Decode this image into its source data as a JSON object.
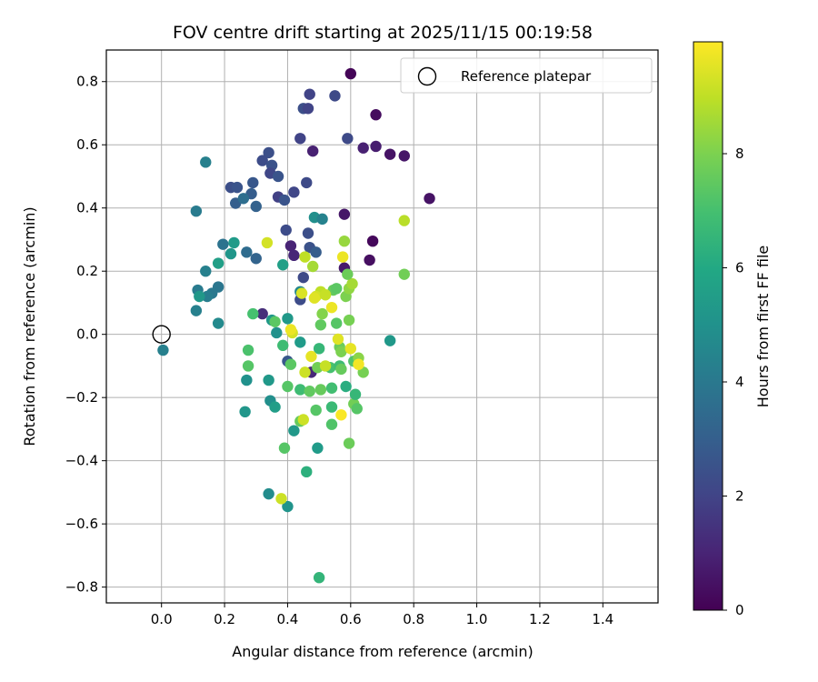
{
  "chart_data": {
    "type": "scatter",
    "title": "FOV centre drift starting at 2025/11/15 00:19:58",
    "xlabel": "Angular distance from reference (arcmin)",
    "ylabel": "Rotation from reference (arcmin)",
    "xlim": [
      -0.175,
      1.575
    ],
    "ylim": [
      -0.85,
      0.9
    ],
    "xticks": [
      0.0,
      0.2,
      0.4,
      0.6,
      0.8,
      1.0,
      1.2,
      1.4
    ],
    "xtick_labels": [
      "0.0",
      "0.2",
      "0.4",
      "0.6",
      "0.8",
      "1.0",
      "1.2",
      "1.4"
    ],
    "yticks": [
      -0.8,
      -0.6,
      -0.4,
      -0.2,
      0.0,
      0.2,
      0.4,
      0.6,
      0.8
    ],
    "ytick_labels": [
      "−0.8",
      "−0.6",
      "−0.4",
      "−0.2",
      "0.0",
      "0.2",
      "0.4",
      "0.6",
      "0.8"
    ],
    "grid": true,
    "legend": {
      "position": "upper-right",
      "entries": [
        "Reference platepar"
      ]
    },
    "reference_point": {
      "x": 0.0,
      "y": 0.0,
      "label": "Reference platepar"
    },
    "colorbar": {
      "label": "Hours from first FF file",
      "colormap": "viridis",
      "range": [
        0,
        9.96
      ],
      "ticks": [
        0,
        2,
        4,
        6,
        8
      ],
      "tick_labels": [
        "0",
        "2",
        "4",
        "6",
        "8"
      ]
    },
    "points": [
      {
        "x": 0.6,
        "y": 0.825,
        "h": 0.1
      },
      {
        "x": 0.68,
        "y": 0.695,
        "h": 0.3
      },
      {
        "x": 0.85,
        "y": 0.43,
        "h": 0.5
      },
      {
        "x": 0.77,
        "y": 0.565,
        "h": 0.6
      },
      {
        "x": 0.725,
        "y": 0.57,
        "h": 0.5
      },
      {
        "x": 0.68,
        "y": 0.595,
        "h": 0.8
      },
      {
        "x": 0.64,
        "y": 0.59,
        "h": 0.9
      },
      {
        "x": 0.67,
        "y": 0.295,
        "h": 0.2
      },
      {
        "x": 0.66,
        "y": 0.235,
        "h": 0.4
      },
      {
        "x": 0.58,
        "y": 0.38,
        "h": 0.6
      },
      {
        "x": 0.58,
        "y": 0.21,
        "h": 0.7
      },
      {
        "x": 0.48,
        "y": 0.58,
        "h": 0.9
      },
      {
        "x": 0.41,
        "y": 0.28,
        "h": 1.0
      },
      {
        "x": 0.42,
        "y": 0.25,
        "h": 1.1
      },
      {
        "x": 0.32,
        "y": 0.065,
        "h": 1.3
      },
      {
        "x": 0.475,
        "y": -0.12,
        "h": 1.1
      },
      {
        "x": 0.55,
        "y": 0.755,
        "h": 2.2
      },
      {
        "x": 0.47,
        "y": 0.76,
        "h": 2.0
      },
      {
        "x": 0.45,
        "y": 0.715,
        "h": 2.4
      },
      {
        "x": 0.465,
        "y": 0.715,
        "h": 2.0
      },
      {
        "x": 0.59,
        "y": 0.62,
        "h": 2.2
      },
      {
        "x": 0.44,
        "y": 0.62,
        "h": 2.0
      },
      {
        "x": 0.34,
        "y": 0.575,
        "h": 2.4
      },
      {
        "x": 0.32,
        "y": 0.55,
        "h": 2.3
      },
      {
        "x": 0.35,
        "y": 0.535,
        "h": 2.5
      },
      {
        "x": 0.345,
        "y": 0.51,
        "h": 2.1
      },
      {
        "x": 0.37,
        "y": 0.5,
        "h": 2.6
      },
      {
        "x": 0.46,
        "y": 0.48,
        "h": 2.2
      },
      {
        "x": 0.42,
        "y": 0.45,
        "h": 2.1
      },
      {
        "x": 0.29,
        "y": 0.48,
        "h": 2.7
      },
      {
        "x": 0.37,
        "y": 0.435,
        "h": 1.9
      },
      {
        "x": 0.39,
        "y": 0.425,
        "h": 2.6
      },
      {
        "x": 0.22,
        "y": 0.465,
        "h": 2.4
      },
      {
        "x": 0.24,
        "y": 0.465,
        "h": 2.6
      },
      {
        "x": 0.285,
        "y": 0.445,
        "h": 2.9
      },
      {
        "x": 0.235,
        "y": 0.415,
        "h": 3.0
      },
      {
        "x": 0.3,
        "y": 0.405,
        "h": 3.1
      },
      {
        "x": 0.395,
        "y": 0.33,
        "h": 2.3
      },
      {
        "x": 0.465,
        "y": 0.32,
        "h": 2.4
      },
      {
        "x": 0.47,
        "y": 0.275,
        "h": 2.5
      },
      {
        "x": 0.49,
        "y": 0.26,
        "h": 2.9
      },
      {
        "x": 0.45,
        "y": 0.18,
        "h": 2.2
      },
      {
        "x": 0.44,
        "y": 0.11,
        "h": 2.3
      },
      {
        "x": 0.4,
        "y": -0.085,
        "h": 2.7
      },
      {
        "x": 0.14,
        "y": 0.545,
        "h": 4.3
      },
      {
        "x": 0.11,
        "y": 0.39,
        "h": 4.1
      },
      {
        "x": 0.26,
        "y": 0.43,
        "h": 3.6
      },
      {
        "x": 0.27,
        "y": 0.26,
        "h": 3.5
      },
      {
        "x": 0.195,
        "y": 0.285,
        "h": 3.8
      },
      {
        "x": 0.3,
        "y": 0.24,
        "h": 3.2
      },
      {
        "x": 0.14,
        "y": 0.2,
        "h": 4.3
      },
      {
        "x": 0.18,
        "y": 0.15,
        "h": 3.9
      },
      {
        "x": 0.16,
        "y": 0.13,
        "h": 4.0
      },
      {
        "x": 0.115,
        "y": 0.14,
        "h": 4.1
      },
      {
        "x": 0.145,
        "y": 0.12,
        "h": 4.2
      },
      {
        "x": 0.11,
        "y": 0.075,
        "h": 4.3
      },
      {
        "x": 0.005,
        "y": -0.05,
        "h": 4.3
      },
      {
        "x": 0.18,
        "y": 0.035,
        "h": 4.7
      },
      {
        "x": 0.44,
        "y": 0.135,
        "h": 4.6
      },
      {
        "x": 0.485,
        "y": 0.37,
        "h": 4.9
      },
      {
        "x": 0.51,
        "y": 0.365,
        "h": 4.4
      },
      {
        "x": 0.23,
        "y": 0.29,
        "h": 5.4
      },
      {
        "x": 0.22,
        "y": 0.255,
        "h": 5.2
      },
      {
        "x": 0.18,
        "y": 0.225,
        "h": 5.6
      },
      {
        "x": 0.12,
        "y": 0.12,
        "h": 5.3
      },
      {
        "x": 0.725,
        "y": -0.02,
        "h": 5.3
      },
      {
        "x": 0.27,
        "y": -0.145,
        "h": 5.0
      },
      {
        "x": 0.34,
        "y": -0.505,
        "h": 4.8
      },
      {
        "x": 0.4,
        "y": -0.545,
        "h": 5.1
      },
      {
        "x": 0.265,
        "y": -0.245,
        "h": 5.2
      },
      {
        "x": 0.345,
        "y": -0.21,
        "h": 4.9
      },
      {
        "x": 0.36,
        "y": -0.23,
        "h": 5.5
      },
      {
        "x": 0.34,
        "y": -0.145,
        "h": 5.3
      },
      {
        "x": 0.35,
        "y": 0.045,
        "h": 5.3
      },
      {
        "x": 0.365,
        "y": 0.005,
        "h": 5.0
      },
      {
        "x": 0.4,
        "y": 0.05,
        "h": 5.3
      },
      {
        "x": 0.44,
        "y": -0.025,
        "h": 5.4
      },
      {
        "x": 0.385,
        "y": 0.22,
        "h": 5.6
      },
      {
        "x": 0.42,
        "y": -0.305,
        "h": 5.3
      },
      {
        "x": 0.495,
        "y": -0.36,
        "h": 5.4
      },
      {
        "x": 0.5,
        "y": -0.77,
        "h": 6.5
      },
      {
        "x": 0.46,
        "y": -0.435,
        "h": 6.3
      },
      {
        "x": 0.39,
        "y": -0.36,
        "h": 7.3
      },
      {
        "x": 0.38,
        "y": -0.52,
        "h": 9.2
      },
      {
        "x": 0.29,
        "y": 0.065,
        "h": 7.0
      },
      {
        "x": 0.36,
        "y": 0.04,
        "h": 7.4
      },
      {
        "x": 0.385,
        "y": -0.035,
        "h": 6.8
      },
      {
        "x": 0.275,
        "y": -0.05,
        "h": 7.1
      },
      {
        "x": 0.275,
        "y": -0.1,
        "h": 7.3
      },
      {
        "x": 0.41,
        "y": -0.095,
        "h": 7.4
      },
      {
        "x": 0.4,
        "y": -0.165,
        "h": 7.3
      },
      {
        "x": 0.44,
        "y": -0.175,
        "h": 6.8
      },
      {
        "x": 0.47,
        "y": -0.18,
        "h": 7.5
      },
      {
        "x": 0.505,
        "y": -0.175,
        "h": 7.6
      },
      {
        "x": 0.44,
        "y": -0.275,
        "h": 7.6
      },
      {
        "x": 0.49,
        "y": -0.24,
        "h": 7.3
      },
      {
        "x": 0.54,
        "y": -0.23,
        "h": 6.7
      },
      {
        "x": 0.54,
        "y": -0.285,
        "h": 7.2
      },
      {
        "x": 0.595,
        "y": -0.345,
        "h": 7.7
      },
      {
        "x": 0.61,
        "y": -0.22,
        "h": 7.8
      },
      {
        "x": 0.62,
        "y": -0.235,
        "h": 7.3
      },
      {
        "x": 0.615,
        "y": -0.19,
        "h": 6.6
      },
      {
        "x": 0.585,
        "y": -0.165,
        "h": 6.2
      },
      {
        "x": 0.54,
        "y": -0.17,
        "h": 6.9
      },
      {
        "x": 0.5,
        "y": -0.045,
        "h": 6.6
      },
      {
        "x": 0.495,
        "y": -0.105,
        "h": 7.8
      },
      {
        "x": 0.535,
        "y": -0.105,
        "h": 7.0
      },
      {
        "x": 0.565,
        "y": -0.1,
        "h": 6.8
      },
      {
        "x": 0.57,
        "y": -0.11,
        "h": 7.6
      },
      {
        "x": 0.565,
        "y": -0.04,
        "h": 7.7
      },
      {
        "x": 0.57,
        "y": -0.055,
        "h": 8.0
      },
      {
        "x": 0.61,
        "y": -0.085,
        "h": 7.2
      },
      {
        "x": 0.625,
        "y": -0.075,
        "h": 8.2
      },
      {
        "x": 0.64,
        "y": -0.12,
        "h": 7.9
      },
      {
        "x": 0.505,
        "y": 0.03,
        "h": 7.5
      },
      {
        "x": 0.555,
        "y": 0.035,
        "h": 7.3
      },
      {
        "x": 0.595,
        "y": 0.045,
        "h": 7.9
      },
      {
        "x": 0.51,
        "y": 0.065,
        "h": 8.1
      },
      {
        "x": 0.545,
        "y": 0.14,
        "h": 7.6
      },
      {
        "x": 0.555,
        "y": 0.145,
        "h": 7.4
      },
      {
        "x": 0.585,
        "y": 0.12,
        "h": 8.0
      },
      {
        "x": 0.595,
        "y": 0.145,
        "h": 8.3
      },
      {
        "x": 0.605,
        "y": 0.16,
        "h": 8.6
      },
      {
        "x": 0.59,
        "y": 0.19,
        "h": 7.7
      },
      {
        "x": 0.58,
        "y": 0.295,
        "h": 8.4
      },
      {
        "x": 0.48,
        "y": 0.215,
        "h": 8.6
      },
      {
        "x": 0.77,
        "y": 0.19,
        "h": 7.8
      },
      {
        "x": 0.77,
        "y": 0.36,
        "h": 8.9
      },
      {
        "x": 0.505,
        "y": 0.135,
        "h": 9.0
      },
      {
        "x": 0.49,
        "y": 0.12,
        "h": 9.3
      },
      {
        "x": 0.485,
        "y": 0.115,
        "h": 9.5
      },
      {
        "x": 0.52,
        "y": 0.125,
        "h": 9.1
      },
      {
        "x": 0.445,
        "y": 0.13,
        "h": 9.4
      },
      {
        "x": 0.54,
        "y": 0.085,
        "h": 9.7
      },
      {
        "x": 0.475,
        "y": -0.07,
        "h": 9.6
      },
      {
        "x": 0.415,
        "y": 0.005,
        "h": 9.3
      },
      {
        "x": 0.41,
        "y": 0.015,
        "h": 9.7
      },
      {
        "x": 0.455,
        "y": -0.12,
        "h": 9.2
      },
      {
        "x": 0.52,
        "y": -0.1,
        "h": 9.1
      },
      {
        "x": 0.56,
        "y": -0.015,
        "h": 9.5
      },
      {
        "x": 0.6,
        "y": -0.045,
        "h": 9.6
      },
      {
        "x": 0.625,
        "y": -0.095,
        "h": 9.8
      },
      {
        "x": 0.455,
        "y": 0.245,
        "h": 9.0
      },
      {
        "x": 0.335,
        "y": 0.29,
        "h": 9.3
      },
      {
        "x": 0.575,
        "y": 0.245,
        "h": 9.7
      },
      {
        "x": 0.57,
        "y": -0.255,
        "h": 9.9
      },
      {
        "x": 0.45,
        "y": -0.27,
        "h": 9.2
      }
    ]
  }
}
